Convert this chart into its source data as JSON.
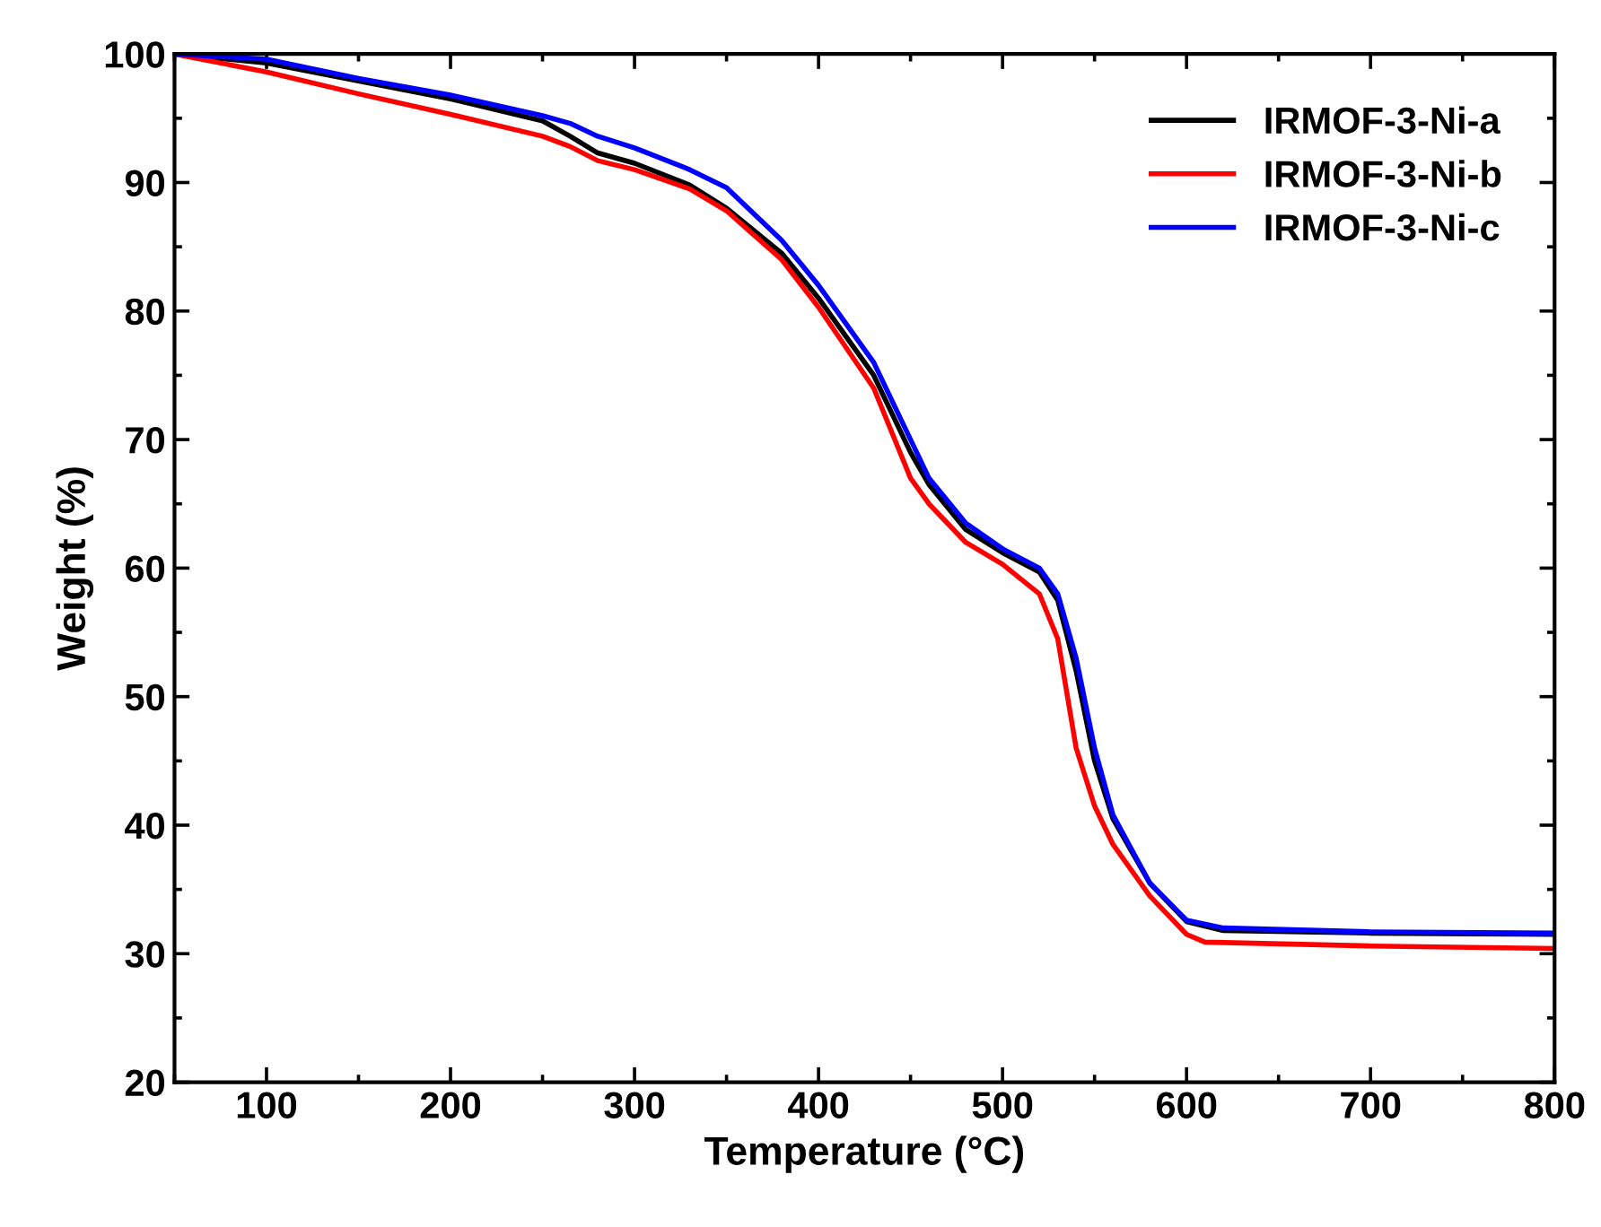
{
  "chart_data": {
    "type": "line",
    "xlabel": "Temperature (°C)",
    "ylabel": "Weight (%)",
    "xlim": [
      50,
      800
    ],
    "ylim": [
      20,
      100
    ],
    "xticks": [
      100,
      200,
      300,
      400,
      500,
      600,
      700,
      800
    ],
    "yticks": [
      20,
      30,
      40,
      50,
      60,
      70,
      80,
      90,
      100
    ],
    "grid": false,
    "legend": "top right",
    "marker": "none",
    "line_style": "solid",
    "series": [
      {
        "name": "IRMOF-3-Ni-a",
        "color": "#000000",
        "x": [
          50,
          100,
          150,
          200,
          250,
          265,
          280,
          300,
          330,
          350,
          380,
          400,
          430,
          450,
          460,
          480,
          500,
          520,
          530,
          540,
          550,
          560,
          580,
          600,
          620,
          700,
          800
        ],
        "values": [
          100,
          99.3,
          97.9,
          96.5,
          94.8,
          93.6,
          92.3,
          91.5,
          89.8,
          88,
          84.5,
          81,
          75,
          69,
          66.5,
          63,
          61.2,
          59.7,
          57.5,
          52,
          45,
          40.5,
          35.5,
          32.5,
          31.8,
          31.6,
          31.5
        ]
      },
      {
        "name": "IRMOF-3-Ni-b",
        "color": "#ff0000",
        "x": [
          50,
          100,
          150,
          200,
          250,
          265,
          280,
          300,
          330,
          350,
          380,
          400,
          430,
          450,
          460,
          480,
          500,
          520,
          530,
          540,
          550,
          560,
          580,
          600,
          610,
          700,
          800
        ],
        "values": [
          100,
          98.6,
          96.9,
          95.3,
          93.6,
          92.8,
          91.7,
          91,
          89.5,
          87.8,
          84,
          80.3,
          74,
          67,
          65,
          62,
          60.3,
          58,
          54.5,
          46,
          41.5,
          38.5,
          34.5,
          31.5,
          30.9,
          30.6,
          30.4
        ]
      },
      {
        "name": "IRMOF-3-Ni-c",
        "color": "#0000ff",
        "x": [
          50,
          100,
          150,
          200,
          250,
          265,
          280,
          300,
          330,
          350,
          380,
          400,
          430,
          450,
          460,
          480,
          500,
          520,
          530,
          540,
          550,
          560,
          580,
          600,
          620,
          700,
          800
        ],
        "values": [
          100,
          99.6,
          98.1,
          96.8,
          95.2,
          94.6,
          93.6,
          92.7,
          91,
          89.6,
          85.5,
          82,
          76,
          70,
          67,
          63.5,
          61.5,
          60,
          58,
          53,
          46,
          40.8,
          35.5,
          32.6,
          32,
          31.7,
          31.6
        ]
      }
    ]
  }
}
